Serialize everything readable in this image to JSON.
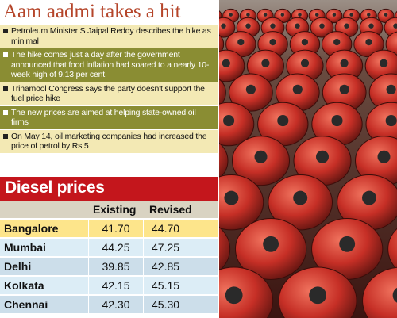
{
  "headline": "Aam aadmi takes a hit",
  "bullets": [
    {
      "text": "Petroleum Minister S Jaipal Reddy describes the hike as minimal",
      "style": "light"
    },
    {
      "text": "The hike comes just a day after the government announced that food inflation had soared to a nearly 10-week high of 9.13 per cent",
      "style": "dark"
    },
    {
      "text": "Trinamool Congress says the party doesn't support the fuel price hike",
      "style": "light"
    },
    {
      "text": "The new prices are aimed at helping state-owned oil firms",
      "style": "dark"
    },
    {
      "text": "On May 14, oil marketing companies had increased the price of petrol by Rs 5",
      "style": "light"
    }
  ],
  "table": {
    "title": "Diesel prices",
    "columns": [
      "Existing",
      "Revised"
    ],
    "rows": [
      {
        "city": "Bangalore",
        "existing": "41.70",
        "revised": "44.70",
        "highlight": true
      },
      {
        "city": "Mumbai",
        "existing": "44.25",
        "revised": "47.25",
        "highlight": false
      },
      {
        "city": "Delhi",
        "existing": "39.85",
        "revised": "42.85",
        "highlight": false
      },
      {
        "city": "Kolkata",
        "existing": "42.15",
        "revised": "45.15",
        "highlight": false
      },
      {
        "city": "Chennai",
        "existing": "42.30",
        "revised": "45.30",
        "highlight": false
      }
    ]
  },
  "colors": {
    "headline": "#b5452a",
    "table_title_bg": "#c4161c",
    "highlight_row": "#fde58b",
    "bullet_light": "#f3e9b4",
    "bullet_dark": "#8a8d33"
  },
  "photo": {
    "subject": "rows of red LPG gas cylinders"
  }
}
